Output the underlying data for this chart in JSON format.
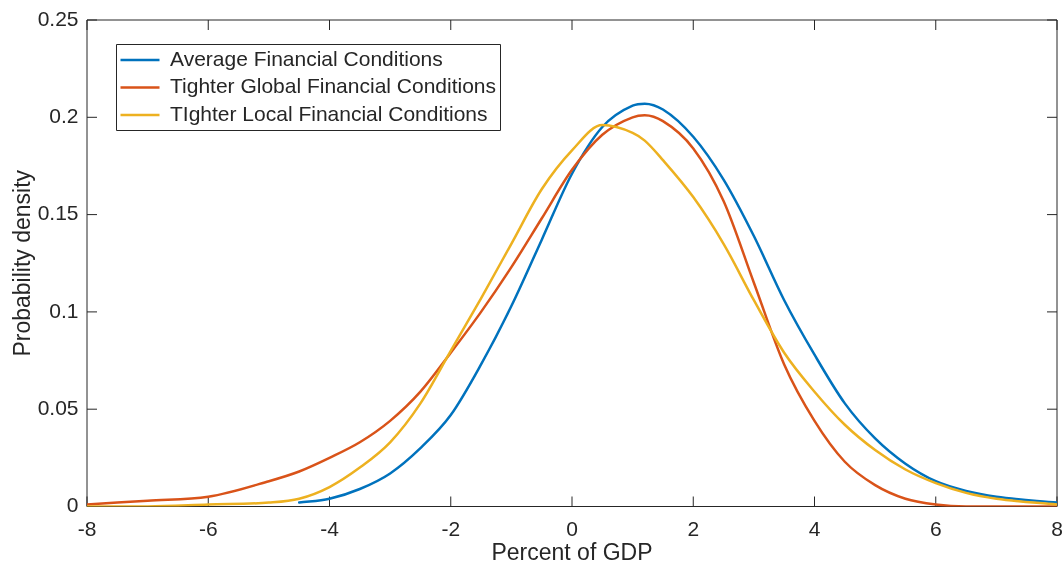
{
  "chart_data": {
    "type": "line",
    "xlabel": "Percent of GDP",
    "ylabel": "Probability density",
    "x": [
      -8,
      -7,
      -6,
      -5,
      -4.5,
      -4,
      -3.5,
      -3,
      -2.5,
      -2,
      -1.5,
      -1,
      -0.5,
      0,
      0.5,
      1,
      1.2,
      1.5,
      2,
      2.5,
      3,
      3.5,
      4,
      4.5,
      5,
      5.5,
      6,
      6.5,
      7,
      8
    ],
    "series": [
      {
        "name": "Average Financial Conditions",
        "color": "#0072bd",
        "values": [
          null,
          null,
          null,
          null,
          0.002,
          0.004,
          0.009,
          0.017,
          0.03,
          0.047,
          0.073,
          0.103,
          0.137,
          0.171,
          0.195,
          0.206,
          0.207,
          0.204,
          0.19,
          0.168,
          0.139,
          0.106,
          0.078,
          0.053,
          0.035,
          0.022,
          0.013,
          0.008,
          0.005,
          0.002
        ]
      },
      {
        "name": "Tighter Global Financial Conditions",
        "color": "#d95319",
        "values": [
          0.001,
          0.003,
          0.005,
          0.013,
          0.018,
          0.025,
          0.033,
          0.044,
          0.059,
          0.079,
          0.1,
          0.123,
          0.148,
          0.173,
          0.191,
          0.2,
          0.201,
          0.198,
          0.184,
          0.157,
          0.115,
          0.073,
          0.044,
          0.023,
          0.011,
          0.004,
          0.001,
          0,
          0,
          0
        ]
      },
      {
        "name": "TIghter Local Financial Conditions",
        "color": "#edb120",
        "values": [
          0,
          0,
          0.001,
          0.002,
          0.004,
          0.01,
          0.02,
          0.033,
          0.053,
          0.08,
          0.107,
          0.135,
          0.163,
          0.183,
          0.196,
          0.192,
          0.188,
          0.178,
          0.159,
          0.135,
          0.106,
          0.079,
          0.059,
          0.042,
          0.029,
          0.019,
          0.012,
          0.007,
          0.004,
          0.001
        ]
      }
    ],
    "xlim": [
      -8,
      8
    ],
    "xticks": [
      -8,
      -6,
      -4,
      -2,
      0,
      2,
      4,
      6,
      8
    ],
    "ylim": [
      0,
      0.25
    ],
    "yticks": [
      0,
      0.05,
      0.1,
      0.15,
      0.2,
      0.25
    ],
    "grid": false,
    "legend": "top left"
  }
}
